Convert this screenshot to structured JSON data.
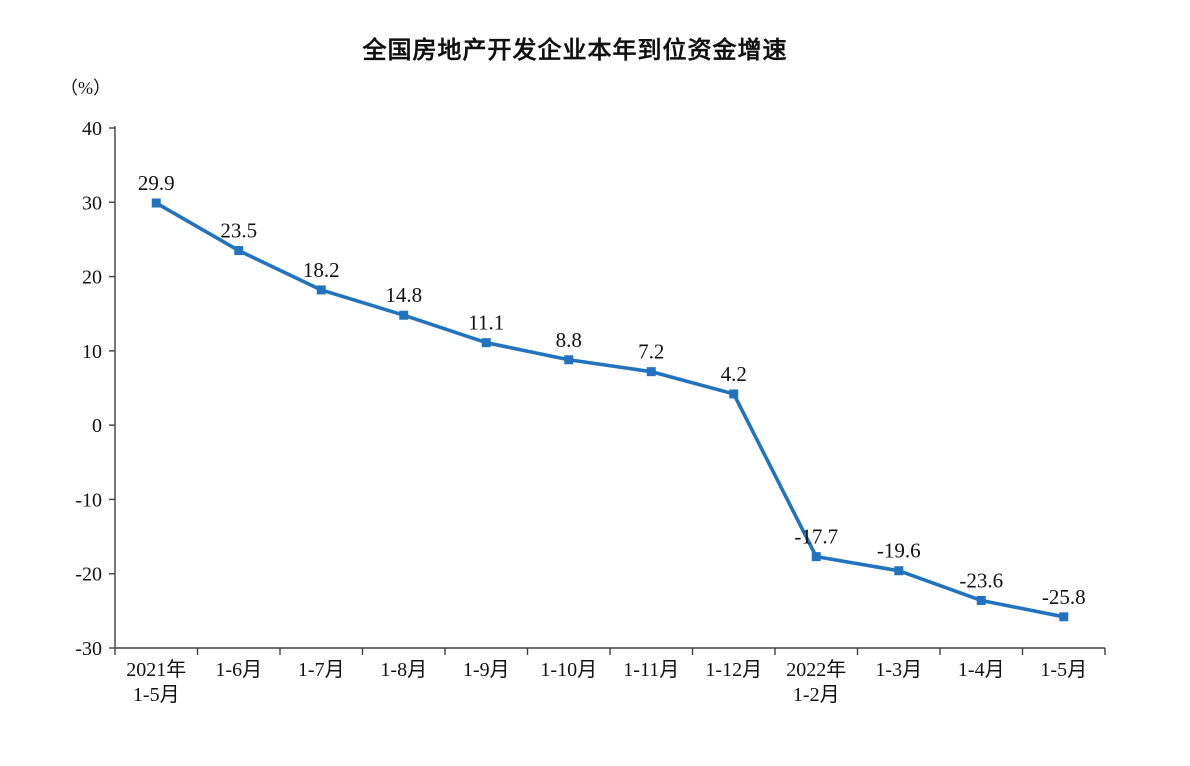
{
  "chart_data": {
    "type": "line",
    "title": "全国房地产开发企业本年到位资金增速",
    "unit_label": "（%）",
    "categories": [
      "2021年\n1-5月",
      "1-6月",
      "1-7月",
      "1-8月",
      "1-9月",
      "1-10月",
      "1-11月",
      "1-12月",
      "2022年\n1-2月",
      "1-3月",
      "1-4月",
      "1-5月"
    ],
    "values": [
      29.9,
      23.5,
      18.2,
      14.8,
      11.1,
      8.8,
      7.2,
      4.2,
      -17.7,
      -19.6,
      -23.6,
      -25.8
    ],
    "data_labels": [
      "29.9",
      "23.5",
      "18.2",
      "14.8",
      "11.1",
      "8.8",
      "7.2",
      "4.2",
      "-17.7",
      "-19.6",
      "-23.6",
      "-25.8"
    ],
    "ylim": [
      -30,
      40
    ],
    "ytick_step": 10,
    "ytick_labels": [
      "-30",
      "-20",
      "-10",
      "0",
      "10",
      "20",
      "30",
      "40"
    ],
    "line_color": "#2173BE",
    "axis_color": "#404040",
    "grid": "off",
    "legend": "none",
    "marker": "square"
  }
}
